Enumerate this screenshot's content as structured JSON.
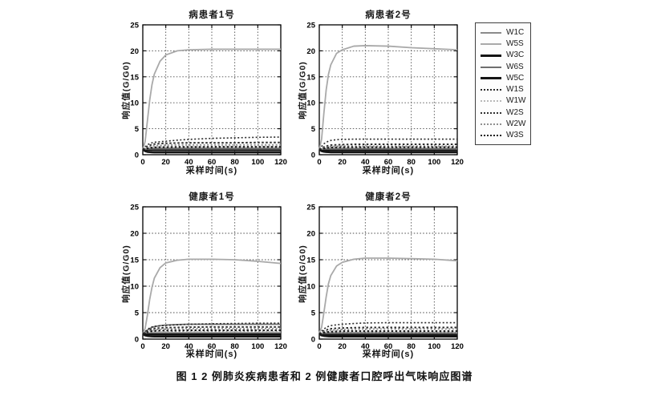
{
  "figure": {
    "caption": "图 1  2 例肺炎疾病患者和 2 例健康者口腔呼出气味响应图谱"
  },
  "chart_data": {
    "type": "line",
    "x": [
      0,
      2,
      4,
      6,
      8,
      10,
      15,
      20,
      30,
      40,
      60,
      80,
      100,
      120
    ],
    "xlabel": "采样时间(s)",
    "ylabel": "响应值(G/G0)",
    "xlim": [
      0,
      120
    ],
    "ylim": [
      0,
      25
    ],
    "xticks": [
      0,
      20,
      40,
      60,
      80,
      100,
      120
    ],
    "yticks": [
      0,
      5,
      10,
      15,
      20,
      25
    ],
    "grid": true,
    "legend_position": "right-outside",
    "series_order": [
      "W1C",
      "W5S",
      "W3C",
      "W6S",
      "W5C",
      "W1S",
      "W1W",
      "W2S",
      "W2W",
      "W3S"
    ],
    "styles": {
      "W1C": {
        "color": "#8a8a8a",
        "width": 1.7,
        "dash": []
      },
      "W5S": {
        "color": "#a9a9a9",
        "width": 1.8,
        "dash": []
      },
      "W3C": {
        "color": "#141414",
        "width": 2.6,
        "dash": []
      },
      "W6S": {
        "color": "#6e6e6e",
        "width": 1.7,
        "dash": []
      },
      "W5C": {
        "color": "#141414",
        "width": 2.6,
        "dash": []
      },
      "W1S": {
        "color": "#2b2b2b",
        "width": 1.6,
        "dash": [
          2,
          2.5
        ]
      },
      "W1W": {
        "color": "#b8b8b8",
        "width": 1.6,
        "dash": [
          2,
          2.5
        ]
      },
      "W2S": {
        "color": "#303030",
        "width": 2.0,
        "dash": [
          2.5,
          2.5
        ]
      },
      "W2W": {
        "color": "#8f8f8f",
        "width": 1.8,
        "dash": [
          2,
          2.5
        ]
      },
      "W3S": {
        "color": "#1f1f1f",
        "width": 2.2,
        "dash": [
          2.5,
          2.5
        ]
      }
    },
    "plots": [
      {
        "title": "病患者1号",
        "series": {
          "W1C": [
            1.0,
            1.1,
            1.15,
            1.2,
            1.22,
            1.25,
            1.25,
            1.25,
            1.25,
            1.25,
            1.25,
            1.25,
            1.25,
            1.25
          ],
          "W5S": [
            1.0,
            2.5,
            6.5,
            10.5,
            13.5,
            15.5,
            18.0,
            19.2,
            20.0,
            20.2,
            20.3,
            20.3,
            20.3,
            20.3
          ],
          "W3C": [
            1.0,
            0.95,
            0.93,
            0.92,
            0.92,
            0.92,
            0.92,
            0.92,
            0.92,
            0.92,
            0.92,
            0.92,
            0.92,
            0.92
          ],
          "W6S": [
            1.0,
            1.05,
            1.08,
            1.1,
            1.1,
            1.12,
            1.12,
            1.12,
            1.12,
            1.12,
            1.12,
            1.12,
            1.12,
            1.12
          ],
          "W5C": [
            1.0,
            0.7,
            0.55,
            0.5,
            0.47,
            0.45,
            0.45,
            0.45,
            0.45,
            0.45,
            0.45,
            0.45,
            0.45,
            0.45
          ],
          "W1S": [
            1.0,
            1.5,
            1.9,
            2.15,
            2.3,
            2.4,
            2.5,
            2.6,
            2.8,
            2.95,
            3.15,
            3.25,
            3.35,
            3.4
          ],
          "W1W": [
            1.0,
            1.15,
            1.3,
            1.4,
            1.5,
            1.55,
            1.6,
            1.6,
            1.62,
            1.62,
            1.62,
            1.62,
            1.62,
            1.62
          ],
          "W2S": [
            1.0,
            1.3,
            1.6,
            1.8,
            1.95,
            2.05,
            2.15,
            2.2,
            2.25,
            2.3,
            2.3,
            2.3,
            2.35,
            2.35
          ],
          "W2W": [
            1.0,
            1.2,
            1.4,
            1.55,
            1.65,
            1.75,
            1.8,
            1.85,
            1.88,
            1.9,
            1.9,
            1.9,
            1.9,
            1.9
          ],
          "W3S": [
            1.0,
            1.1,
            1.2,
            1.3,
            1.35,
            1.4,
            1.45,
            1.45,
            1.48,
            1.48,
            1.5,
            1.5,
            1.5,
            1.5
          ]
        }
      },
      {
        "title": "病患者2号",
        "series": {
          "W1C": [
            1.0,
            1.08,
            1.12,
            1.15,
            1.18,
            1.2,
            1.2,
            1.2,
            1.2,
            1.2,
            1.2,
            1.2,
            1.2,
            1.2
          ],
          "W5S": [
            1.0,
            3.0,
            8.0,
            12.5,
            15.5,
            17.3,
            19.5,
            20.2,
            20.9,
            21.0,
            20.9,
            20.6,
            20.4,
            20.2
          ],
          "W3C": [
            1.0,
            0.95,
            0.92,
            0.9,
            0.9,
            0.9,
            0.9,
            0.9,
            0.9,
            0.9,
            0.9,
            0.9,
            0.9,
            0.9
          ],
          "W6S": [
            1.0,
            1.04,
            1.07,
            1.1,
            1.1,
            1.1,
            1.1,
            1.1,
            1.1,
            1.1,
            1.1,
            1.1,
            1.1,
            1.1
          ],
          "W5C": [
            1.0,
            0.7,
            0.58,
            0.52,
            0.5,
            0.48,
            0.48,
            0.48,
            0.48,
            0.48,
            0.48,
            0.48,
            0.48,
            0.48
          ],
          "W1S": [
            1.0,
            1.6,
            2.1,
            2.4,
            2.6,
            2.75,
            2.9,
            2.95,
            3.0,
            3.0,
            3.0,
            3.0,
            3.0,
            3.0
          ],
          "W1W": [
            1.0,
            1.1,
            1.2,
            1.28,
            1.32,
            1.35,
            1.35,
            1.35,
            1.35,
            1.35,
            1.35,
            1.35,
            1.35,
            1.35
          ],
          "W2S": [
            1.0,
            1.25,
            1.5,
            1.65,
            1.75,
            1.85,
            1.9,
            1.95,
            2.0,
            2.0,
            2.0,
            2.0,
            2.0,
            2.0
          ],
          "W2W": [
            1.0,
            1.2,
            1.35,
            1.45,
            1.55,
            1.6,
            1.62,
            1.65,
            1.65,
            1.65,
            1.65,
            1.65,
            1.65,
            1.65
          ],
          "W3S": [
            1.0,
            1.1,
            1.2,
            1.28,
            1.35,
            1.4,
            1.42,
            1.45,
            1.45,
            1.45,
            1.45,
            1.45,
            1.45,
            1.45
          ]
        }
      },
      {
        "title": "健康者1号",
        "series": {
          "W1C": [
            1.0,
            1.08,
            1.12,
            1.16,
            1.18,
            1.2,
            1.2,
            1.2,
            1.2,
            1.2,
            1.2,
            1.2,
            1.2,
            1.2
          ],
          "W5S": [
            1.0,
            2.0,
            4.5,
            7.5,
            9.8,
            11.5,
            13.5,
            14.4,
            14.9,
            15.1,
            15.1,
            15.0,
            14.7,
            14.3
          ],
          "W3C": [
            1.0,
            0.95,
            0.92,
            0.9,
            0.9,
            0.9,
            0.9,
            0.9,
            0.9,
            0.9,
            0.9,
            0.9,
            0.9,
            0.9
          ],
          "W6S": [
            1.0,
            1.3,
            1.7,
            2.0,
            2.2,
            2.35,
            2.55,
            2.65,
            2.75,
            2.8,
            2.8,
            2.8,
            2.8,
            2.8
          ],
          "W5C": [
            1.0,
            0.7,
            0.6,
            0.55,
            0.52,
            0.5,
            0.5,
            0.5,
            0.5,
            0.5,
            0.5,
            0.5,
            0.5,
            0.5
          ],
          "W1S": [
            1.0,
            1.4,
            1.8,
            2.1,
            2.3,
            2.4,
            2.5,
            2.6,
            2.7,
            2.8,
            2.9,
            2.95,
            3.0,
            3.0
          ],
          "W1W": [
            1.0,
            1.1,
            1.2,
            1.3,
            1.35,
            1.4,
            1.4,
            1.4,
            1.4,
            1.4,
            1.4,
            1.4,
            1.4,
            1.4
          ],
          "W2S": [
            1.0,
            1.3,
            1.55,
            1.75,
            1.9,
            2.0,
            2.1,
            2.15,
            2.2,
            2.25,
            2.3,
            2.3,
            2.3,
            2.3
          ],
          "W2W": [
            1.0,
            1.2,
            1.4,
            1.55,
            1.65,
            1.75,
            1.85,
            1.9,
            1.95,
            2.0,
            2.0,
            2.0,
            2.0,
            2.0
          ],
          "W3S": [
            1.0,
            1.15,
            1.3,
            1.4,
            1.5,
            1.55,
            1.6,
            1.6,
            1.62,
            1.65,
            1.65,
            1.65,
            1.65,
            1.65
          ]
        }
      },
      {
        "title": "健康者2号",
        "series": {
          "W1C": [
            1.0,
            1.08,
            1.12,
            1.15,
            1.18,
            1.2,
            1.2,
            1.2,
            1.2,
            1.2,
            1.2,
            1.2,
            1.2,
            1.2
          ],
          "W5S": [
            1.2,
            2.2,
            5.0,
            8.0,
            10.5,
            12.0,
            13.8,
            14.5,
            15.1,
            15.3,
            15.3,
            15.2,
            15.1,
            14.8
          ],
          "W3C": [
            1.0,
            0.92,
            0.88,
            0.86,
            0.85,
            0.85,
            0.85,
            0.85,
            0.85,
            0.85,
            0.85,
            0.85,
            0.85,
            0.85
          ],
          "W6S": [
            1.0,
            1.04,
            1.07,
            1.1,
            1.1,
            1.1,
            1.1,
            1.1,
            1.1,
            1.1,
            1.1,
            1.1,
            1.1,
            1.1
          ],
          "W5C": [
            1.0,
            0.7,
            0.6,
            0.55,
            0.52,
            0.5,
            0.5,
            0.5,
            0.5,
            0.5,
            0.5,
            0.5,
            0.5,
            0.5
          ],
          "W1S": [
            1.0,
            1.5,
            1.9,
            2.2,
            2.4,
            2.55,
            2.7,
            2.8,
            2.95,
            3.05,
            3.1,
            3.1,
            3.1,
            3.1
          ],
          "W1W": [
            1.0,
            1.1,
            1.2,
            1.25,
            1.3,
            1.3,
            1.3,
            1.3,
            1.3,
            1.3,
            1.3,
            1.3,
            1.3,
            1.3
          ],
          "W2S": [
            1.0,
            1.3,
            1.55,
            1.7,
            1.85,
            1.95,
            2.05,
            2.1,
            2.15,
            2.2,
            2.2,
            2.2,
            2.2,
            2.2
          ],
          "W2W": [
            1.0,
            1.2,
            1.35,
            1.5,
            1.6,
            1.7,
            1.75,
            1.8,
            1.85,
            1.9,
            1.9,
            1.9,
            1.9,
            1.9
          ],
          "W3S": [
            1.0,
            1.1,
            1.2,
            1.3,
            1.35,
            1.4,
            1.45,
            1.5,
            1.5,
            1.5,
            1.5,
            1.5,
            1.5,
            1.5
          ]
        }
      }
    ]
  }
}
